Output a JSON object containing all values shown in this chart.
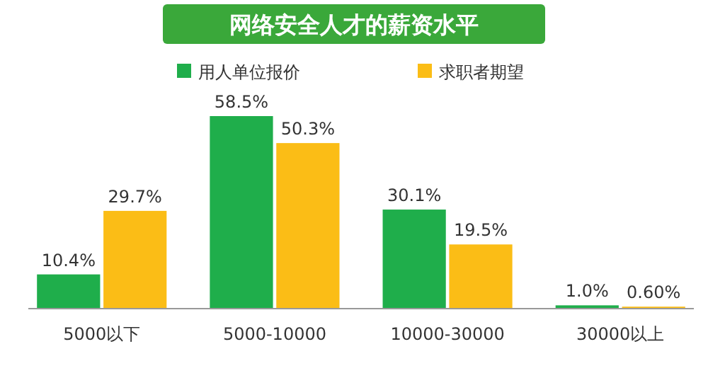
{
  "chart_data": {
    "type": "bar",
    "title": "网络安全人才的薪资水平",
    "categories": [
      "5000以下",
      "5000-10000",
      "10000-30000",
      "30000以上"
    ],
    "series": [
      {
        "name": "用人单位报价",
        "color": "#1fae4b",
        "values": [
          10.4,
          58.5,
          30.1,
          1.0
        ],
        "value_labels": [
          "10.4%",
          "58.5%",
          "30.1%",
          "1.0%"
        ]
      },
      {
        "name": "求职者期望",
        "color": "#fbbd16",
        "values": [
          29.7,
          50.3,
          19.5,
          0.6
        ],
        "value_labels": [
          "29.7%",
          "50.3%",
          "19.5%",
          "0.60%"
        ]
      }
    ],
    "legend": "top"
  }
}
